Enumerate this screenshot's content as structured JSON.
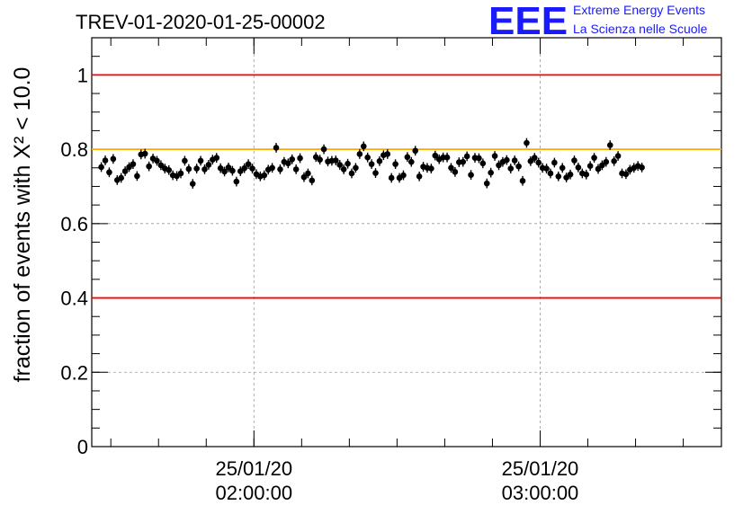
{
  "title": "TREV-01-2020-01-25-00002",
  "logo": {
    "mark": "EEE",
    "line1": "Extreme Energy Events",
    "line2": "La Scienza nelle Scuole",
    "color": "#1a1aff"
  },
  "chart_data": {
    "type": "scatter",
    "title": "TREV-01-2020-01-25-00002",
    "ylabel": "fraction of events with X² < 10.0",
    "xlabel": "",
    "x_start": "01:28",
    "x_step_minutes": 0.8333,
    "xlim": [
      "01:26",
      "03:38"
    ],
    "ylim": [
      0,
      1.1
    ],
    "yticks": [
      0,
      0.2,
      0.4,
      0.6,
      0.8,
      1
    ],
    "ytick_labels": [
      "0",
      "0.2",
      "0.4",
      "0.6",
      "0.8",
      "1"
    ],
    "xticks": [
      {
        "time": "02:00",
        "label_date": "25/01/20",
        "label_time": "02:00:00"
      },
      {
        "time": "03:00",
        "label_date": "25/01/20",
        "label_time": "03:00:00"
      }
    ],
    "grid": true,
    "reference_lines": [
      {
        "y": 1.0,
        "color": "#ff0000"
      },
      {
        "y": 0.8,
        "color": "#ffaa00"
      },
      {
        "y": 0.4,
        "color": "#ff0000"
      }
    ],
    "error": 0.013,
    "series": [
      {
        "marker_color": "#000000",
        "y": [
          0.752,
          0.77,
          0.738,
          0.774,
          0.717,
          0.723,
          0.741,
          0.752,
          0.76,
          0.728,
          0.786,
          0.788,
          0.754,
          0.775,
          0.769,
          0.757,
          0.748,
          0.744,
          0.73,
          0.728,
          0.735,
          0.769,
          0.747,
          0.707,
          0.748,
          0.769,
          0.746,
          0.758,
          0.772,
          0.777,
          0.749,
          0.74,
          0.751,
          0.742,
          0.713,
          0.741,
          0.749,
          0.76,
          0.748,
          0.733,
          0.727,
          0.73,
          0.745,
          0.75,
          0.804,
          0.746,
          0.766,
          0.762,
          0.773,
          0.746,
          0.776,
          0.725,
          0.735,
          0.716,
          0.779,
          0.772,
          0.8,
          0.767,
          0.769,
          0.77,
          0.758,
          0.746,
          0.761,
          0.735,
          0.75,
          0.787,
          0.808,
          0.778,
          0.76,
          0.736,
          0.768,
          0.784,
          0.787,
          0.723,
          0.76,
          0.723,
          0.73,
          0.779,
          0.766,
          0.796,
          0.727,
          0.753,
          0.75,
          0.748,
          0.783,
          0.773,
          0.778,
          0.778,
          0.75,
          0.739,
          0.765,
          0.766,
          0.781,
          0.731,
          0.777,
          0.776,
          0.762,
          0.708,
          0.737,
          0.782,
          0.757,
          0.766,
          0.771,
          0.748,
          0.77,
          0.754,
          0.715,
          0.817,
          0.768,
          0.777,
          0.764,
          0.75,
          0.748,
          0.735,
          0.764,
          0.727,
          0.75,
          0.724,
          0.732,
          0.77,
          0.751,
          0.735,
          0.732,
          0.755,
          0.777,
          0.747,
          0.757,
          0.766,
          0.811,
          0.768,
          0.782,
          0.735,
          0.733,
          0.745,
          0.75,
          0.755,
          0.751
        ]
      }
    ]
  }
}
